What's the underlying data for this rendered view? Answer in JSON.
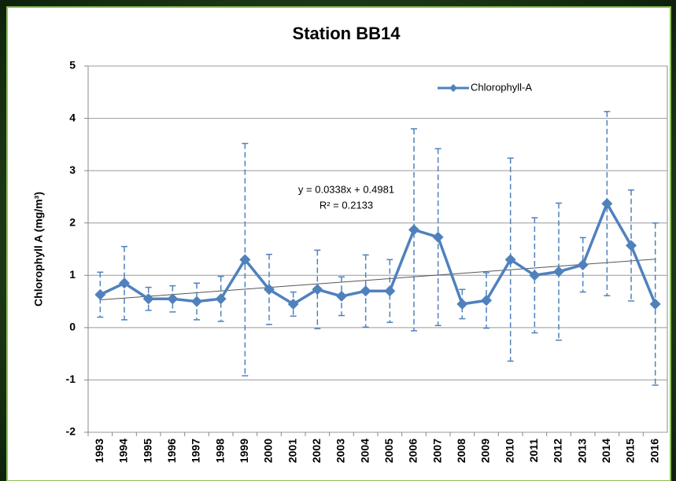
{
  "chart_data": {
    "type": "line",
    "title": "Station BB14",
    "y_label": "Chlorophyll A (mg/m³)",
    "categories": [
      "1993",
      "1994",
      "1995",
      "1996",
      "1997",
      "1998",
      "1999",
      "2000",
      "2001",
      "2002",
      "2003",
      "2004",
      "2005",
      "2006",
      "2007",
      "2008",
      "2009",
      "2010",
      "2011",
      "2012",
      "2013",
      "2014",
      "2015",
      "2016"
    ],
    "series": [
      {
        "name": "Chlorophyll-A",
        "color": "#4f81bd",
        "values": [
          0.63,
          0.85,
          0.55,
          0.55,
          0.5,
          0.55,
          1.3,
          0.73,
          0.45,
          0.73,
          0.6,
          0.7,
          0.7,
          1.87,
          1.73,
          0.45,
          0.52,
          1.3,
          1.0,
          1.07,
          1.2,
          2.37,
          1.57,
          0.45
        ],
        "errors": [
          0.43,
          0.7,
          0.22,
          0.25,
          0.35,
          0.43,
          2.22,
          0.67,
          0.23,
          0.75,
          0.37,
          0.69,
          0.6,
          1.93,
          1.69,
          0.28,
          0.53,
          1.94,
          1.1,
          1.31,
          0.52,
          1.76,
          1.06,
          1.55
        ]
      }
    ],
    "trendline": {
      "slope": 0.0338,
      "intercept": 0.4981,
      "color": "#555555"
    },
    "annotations": [
      "y = 0.0338x + 0.4981",
      "R² = 0.2133"
    ],
    "ylim": [
      -2,
      5
    ],
    "yticks": [
      -2,
      -1,
      0,
      1,
      2,
      3,
      4,
      5
    ],
    "grid": true,
    "legend": "top-right"
  }
}
